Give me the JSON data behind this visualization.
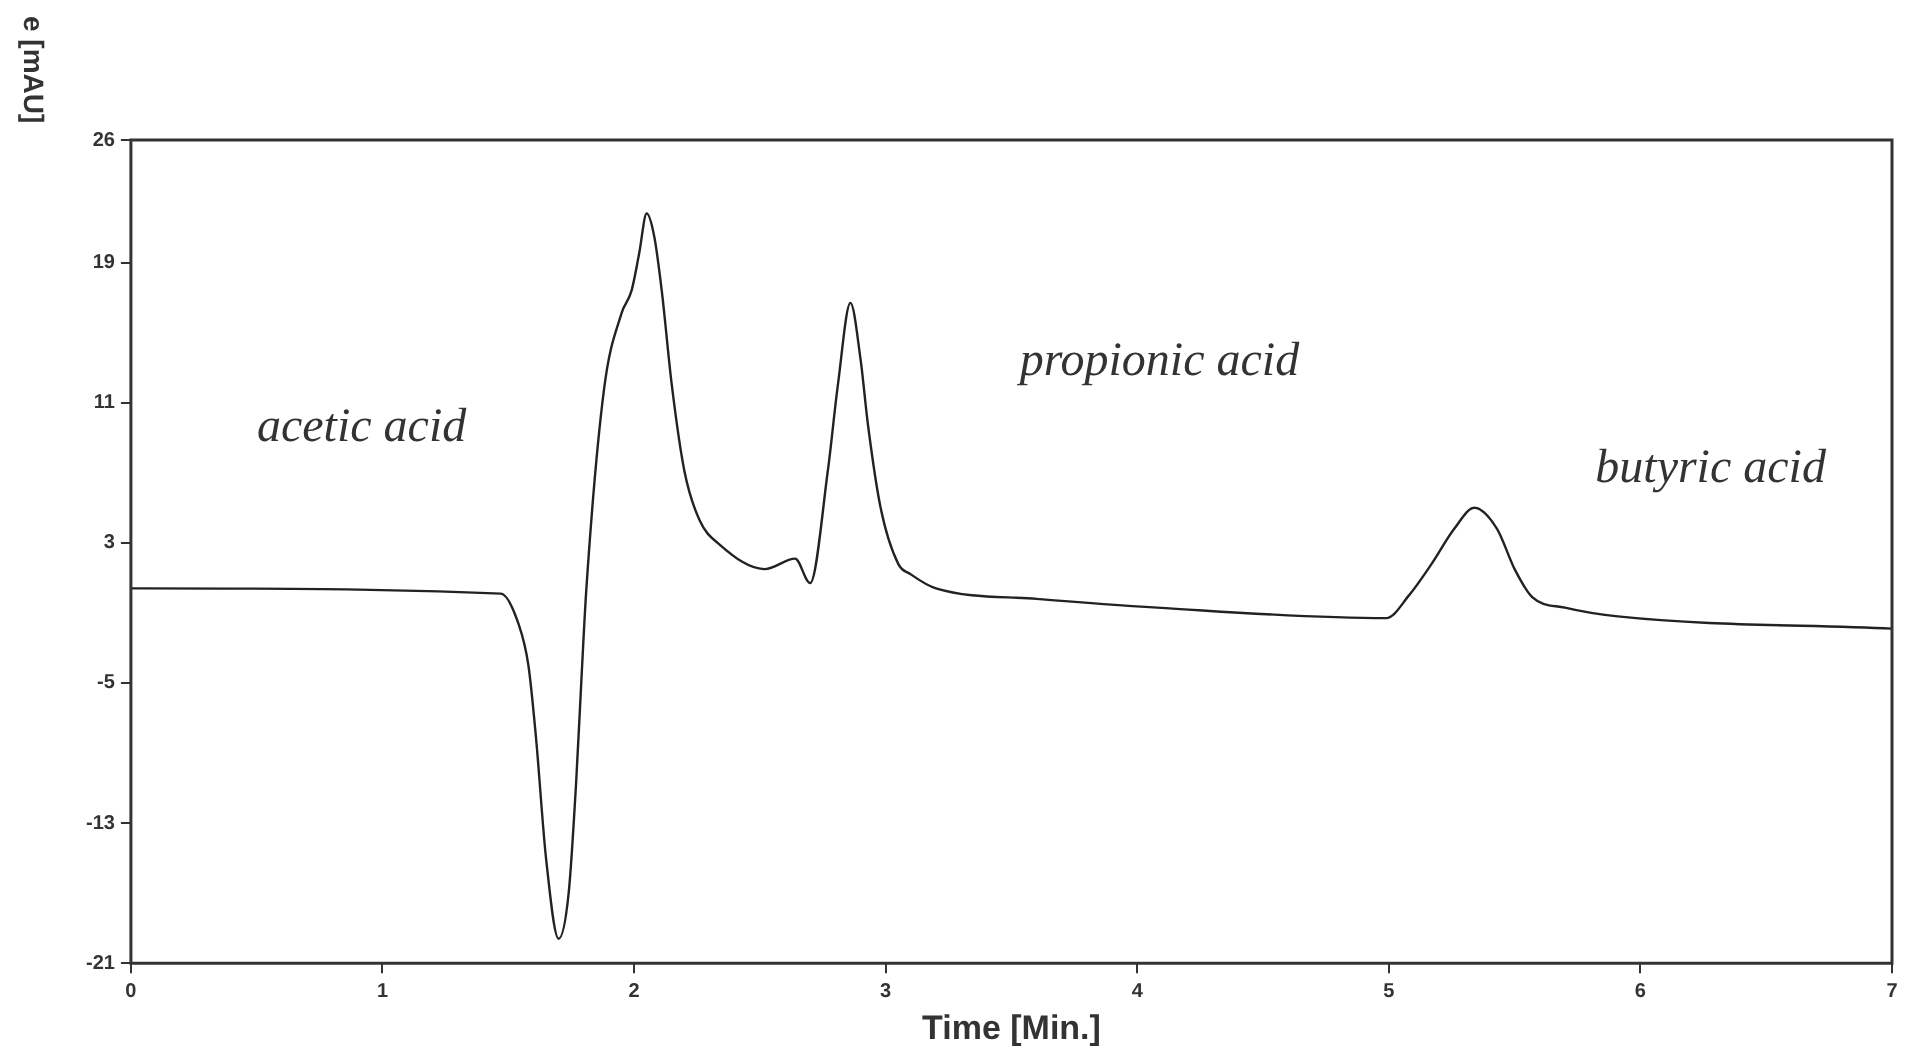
{
  "chart_data": {
    "type": "line",
    "xlabel": "Time [Min.]",
    "ylabel": "e [mAU]",
    "xlim": [
      0,
      7
    ],
    "xticks": [
      0,
      1,
      2,
      3,
      4,
      5,
      6,
      7
    ],
    "ylim": [
      -21,
      26
    ],
    "yticks": [
      -21,
      -13,
      -5,
      3,
      11,
      19,
      26
    ],
    "grid": false,
    "legend": false,
    "marker": "none",
    "line_style": "solid",
    "series": [
      {
        "color": "#222222",
        "x": [
          0,
          1.47,
          1.54,
          1.58,
          1.61,
          1.65,
          1.7,
          1.74,
          1.77,
          1.79,
          1.81,
          1.88,
          1.95,
          1.99,
          2.02,
          2.05,
          2.08,
          2.11,
          2.15,
          2.2,
          2.26,
          2.34,
          2.52,
          2.64,
          2.7,
          2.77,
          2.81,
          2.86,
          2.9,
          2.93,
          2.98,
          3.05,
          3.1,
          3.2,
          3.6,
          4.08,
          4.99,
          5.08,
          5.17,
          5.26,
          5.34,
          5.43,
          5.5,
          5.57,
          5.7,
          5.91,
          7.0
        ],
        "values": [
          0.4,
          0.1,
          -1.6,
          -4,
          -8.1,
          -15,
          -19.6,
          -17,
          -10.6,
          -5,
          0.3,
          11.7,
          16.1,
          17.4,
          19.5,
          21.8,
          20.5,
          17.4,
          12,
          7.1,
          4.3,
          2.9,
          1.5,
          2.1,
          0.7,
          7.1,
          12,
          16.7,
          13.5,
          9.7,
          5,
          1.8,
          1.2,
          0.4,
          -0.2,
          -0.7,
          -1.3,
          0,
          1.8,
          3.8,
          5.0,
          3.8,
          1.5,
          -0.1,
          -0.7,
          -1.2,
          -1.9
        ]
      }
    ],
    "annotations": [
      "acetic acid",
      "propionic acid",
      "butyric acid"
    ]
  }
}
